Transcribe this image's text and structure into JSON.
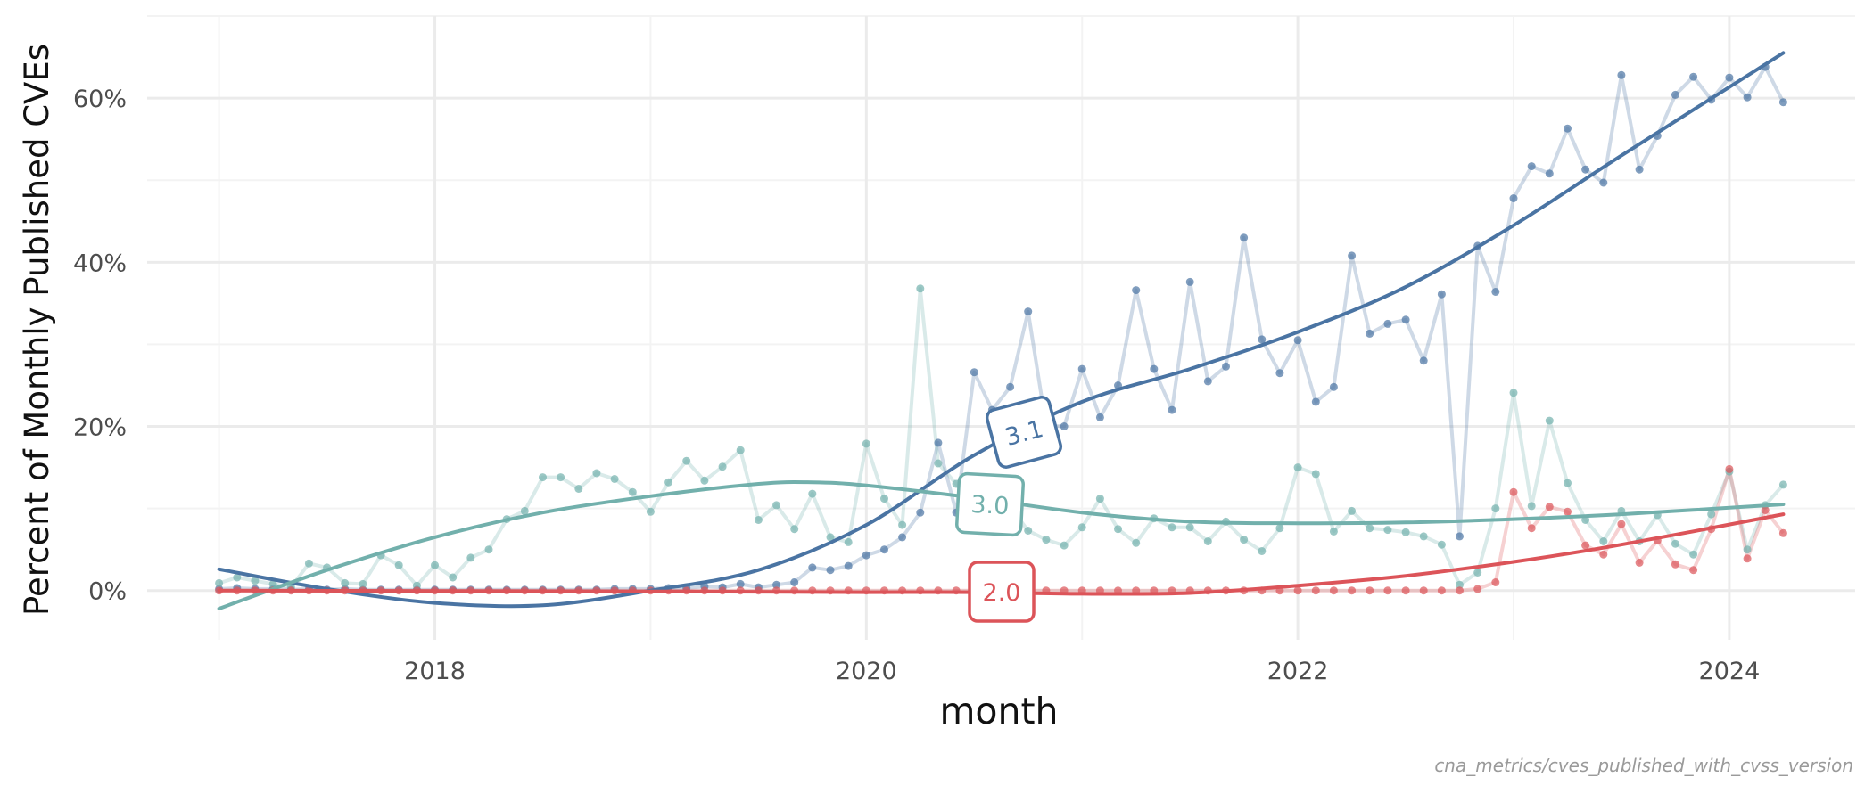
{
  "chart_data": {
    "type": "line",
    "xlabel": "month",
    "ylabel": "Percent of Monthly Published CVEs",
    "caption": "cna_metrics/cves_published_with_cvss_version",
    "x_range": [
      "2016-09-01",
      "2024-08-01"
    ],
    "ylim": [
      -6,
      70
    ],
    "x_ticks": [
      {
        "date": "2018-01-01",
        "label": "2018"
      },
      {
        "date": "2020-01-01",
        "label": "2020"
      },
      {
        "date": "2022-01-01",
        "label": "2022"
      },
      {
        "date": "2024-01-01",
        "label": "2024"
      }
    ],
    "y_ticks": [
      {
        "value": 0,
        "label": "0%"
      },
      {
        "value": 20,
        "label": "20%"
      },
      {
        "value": 40,
        "label": "40%"
      },
      {
        "value": 60,
        "label": "60%"
      }
    ],
    "grid": true,
    "x_start": "2017-01",
    "series": [
      {
        "name": "3.1",
        "color": "#4a74a3",
        "values": [
          0.2,
          0.3,
          0.2,
          0.2,
          0.1,
          0.2,
          0.1,
          0.2,
          0.1,
          0.1,
          0.1,
          0.1,
          0.1,
          0.1,
          0.1,
          0.1,
          0.1,
          0.1,
          0.1,
          0.1,
          0.1,
          0.1,
          0.2,
          0.2,
          0.2,
          0.3,
          0.3,
          0.5,
          0.4,
          0.8,
          0.4,
          0.7,
          1.0,
          2.8,
          2.5,
          3.0,
          4.3,
          5.0,
          6.5,
          9.5,
          18.0,
          9.5,
          26.6,
          22.0,
          24.8,
          34.0,
          20.1,
          20.0,
          27.0,
          21.1,
          25.0,
          36.6,
          27.0,
          22.0,
          37.6,
          25.5,
          27.3,
          43.0,
          30.6,
          26.5,
          30.5,
          23.0,
          24.8,
          40.8,
          31.3,
          32.5,
          33.0,
          28.0,
          36.1,
          6.6,
          42.0,
          36.4,
          47.8,
          51.7,
          50.8,
          56.3,
          51.3,
          49.7,
          62.8,
          51.3,
          55.4,
          60.4,
          62.6,
          59.8,
          62.5,
          60.1,
          63.8,
          59.5
        ]
      },
      {
        "name": "3.0",
        "color": "#72b0ac",
        "values": [
          0.9,
          1.6,
          1.2,
          0.8,
          0.4,
          3.3,
          2.8,
          0.9,
          0.8,
          4.3,
          3.1,
          0.6,
          3.1,
          1.6,
          4.0,
          5.0,
          8.7,
          9.7,
          13.8,
          13.8,
          12.4,
          14.3,
          13.6,
          12.0,
          9.6,
          13.2,
          15.8,
          13.4,
          15.1,
          17.1,
          8.6,
          10.4,
          7.5,
          11.8,
          6.5,
          5.9,
          17.9,
          11.2,
          8.0,
          36.8,
          15.5,
          13.0,
          10.0,
          11.8,
          10.2,
          7.3,
          6.2,
          5.5,
          7.7,
          11.2,
          7.5,
          5.8,
          8.8,
          7.7,
          7.7,
          6.0,
          8.4,
          6.2,
          4.8,
          7.6,
          15.0,
          14.2,
          7.2,
          9.7,
          7.6,
          7.4,
          7.1,
          6.6,
          5.6,
          0.7,
          2.2,
          10.0,
          24.1,
          10.3,
          20.7,
          13.1,
          8.6,
          6.0,
          9.7,
          6.0,
          9.2,
          5.7,
          4.4,
          9.3,
          14.5,
          5.0,
          10.4,
          12.9
        ]
      },
      {
        "name": "2.0",
        "color": "#dc5459",
        "values": [
          0,
          0,
          0,
          0,
          0,
          0,
          0,
          0,
          0,
          0,
          0,
          0,
          0,
          0,
          0,
          0,
          0,
          0,
          0,
          0,
          0,
          0,
          0,
          0,
          0,
          0,
          0,
          0,
          0,
          0,
          0,
          0,
          0,
          0,
          0,
          0,
          0,
          0,
          0,
          0,
          0,
          0,
          0,
          0,
          0,
          0,
          0,
          0,
          0,
          0,
          0,
          0,
          0,
          0,
          0,
          0,
          0,
          0,
          0,
          0,
          0,
          0,
          0,
          0,
          0,
          0,
          0,
          0,
          0,
          0,
          0.2,
          1.0,
          12.0,
          7.6,
          10.2,
          9.6,
          5.5,
          4.4,
          8.1,
          3.4,
          6.1,
          3.2,
          2.5,
          7.5,
          14.8,
          3.9,
          9.8,
          7.0
        ]
      }
    ],
    "trend_lines": [
      {
        "name": "3.1",
        "color": "#4a74a3",
        "label": "3.1",
        "label_rotation": -15,
        "points": [
          [
            "2017-01",
            2.6
          ],
          [
            "2017-07",
            0.2
          ],
          [
            "2018-01",
            -1.5
          ],
          [
            "2018-07",
            -1.8
          ],
          [
            "2019-01",
            0.0
          ],
          [
            "2019-07",
            2.5
          ],
          [
            "2020-01",
            8.0
          ],
          [
            "2020-07",
            16.5
          ],
          [
            "2021-01",
            23.0
          ],
          [
            "2021-07",
            27.0
          ],
          [
            "2022-01",
            31.5
          ],
          [
            "2022-07",
            37.0
          ],
          [
            "2023-01",
            44.5
          ],
          [
            "2023-07",
            53.0
          ],
          [
            "2024-04",
            65.5
          ]
        ]
      },
      {
        "name": "3.0",
        "color": "#72b0ac",
        "label": "3.0",
        "label_rotation": 3,
        "points": [
          [
            "2017-01",
            -2.2
          ],
          [
            "2017-07",
            2.5
          ],
          [
            "2018-01",
            6.5
          ],
          [
            "2018-07",
            9.5
          ],
          [
            "2019-01",
            11.5
          ],
          [
            "2019-07",
            13.0
          ],
          [
            "2019-10",
            13.2
          ],
          [
            "2020-01",
            12.8
          ],
          [
            "2020-07",
            11.3
          ],
          [
            "2021-01",
            9.5
          ],
          [
            "2021-07",
            8.4
          ],
          [
            "2022-01",
            8.2
          ],
          [
            "2022-07",
            8.3
          ],
          [
            "2023-01",
            8.7
          ],
          [
            "2023-07",
            9.3
          ],
          [
            "2024-04",
            10.5
          ]
        ]
      },
      {
        "name": "2.0",
        "color": "#dc5459",
        "label": "2.0",
        "label_rotation": 0,
        "points": [
          [
            "2017-01",
            0.0
          ],
          [
            "2018-01",
            -0.05
          ],
          [
            "2019-01",
            -0.1
          ],
          [
            "2020-01",
            -0.2
          ],
          [
            "2020-07",
            -0.2
          ],
          [
            "2021-01",
            -0.4
          ],
          [
            "2021-07",
            -0.3
          ],
          [
            "2022-01",
            0.6
          ],
          [
            "2022-07",
            1.8
          ],
          [
            "2023-01",
            3.5
          ],
          [
            "2023-07",
            5.6
          ],
          [
            "2024-04",
            9.3
          ]
        ]
      }
    ]
  }
}
